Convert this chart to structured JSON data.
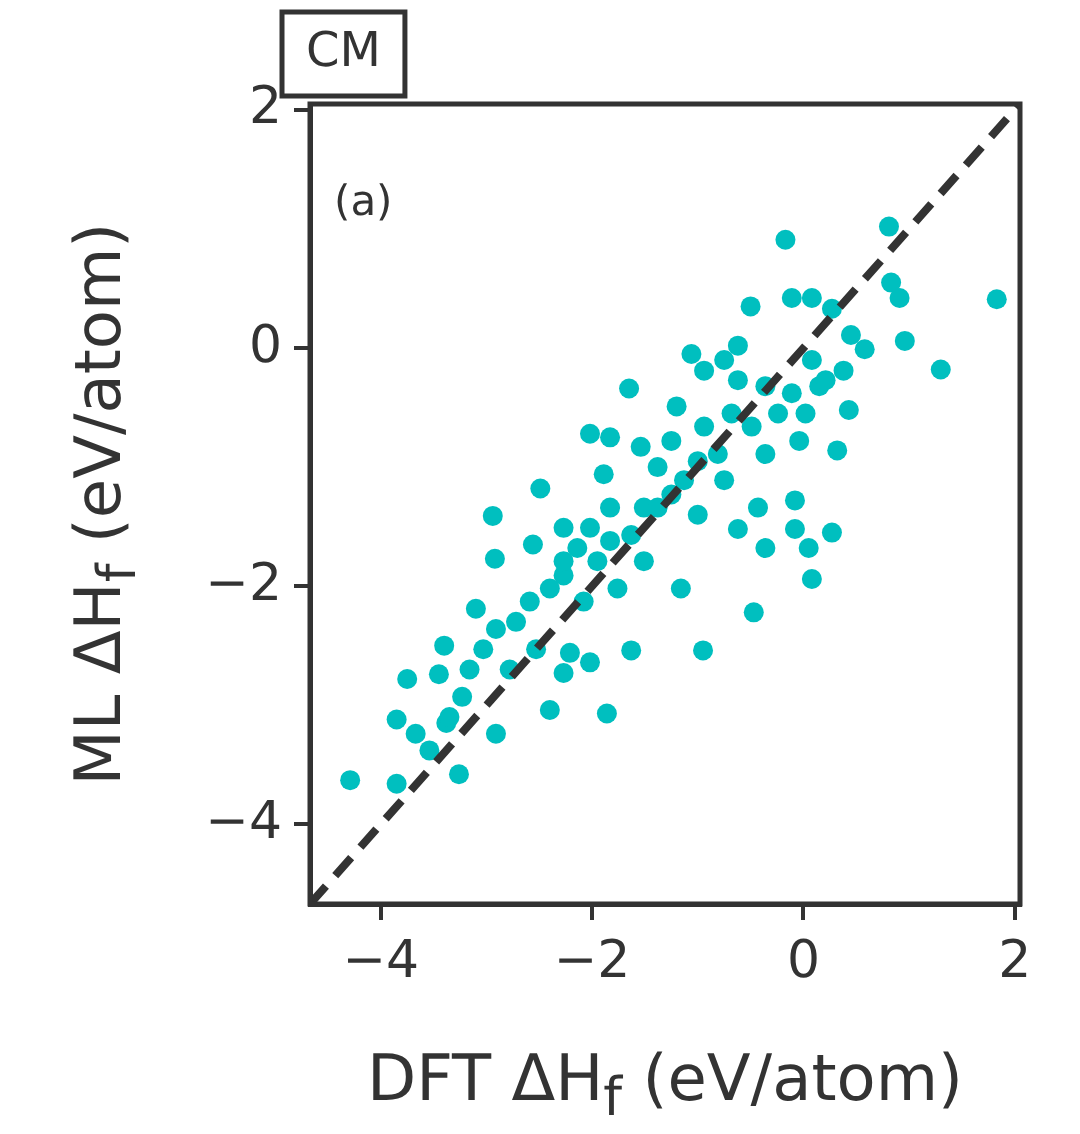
{
  "chart_data": {
    "type": "scatter",
    "xlabel": "DFT ΔH$_{f}$ (eV/atom)",
    "ylabel": "ML ΔH$_{f}$ (eV/atom)",
    "annotations": [
      "CM",
      "(a)"
    ],
    "xlim": [
      -4.67,
      2.05
    ],
    "ylim": [
      -4.67,
      2.05
    ],
    "xticks": [
      {
        "value": -4,
        "label": "−4"
      },
      {
        "value": -2,
        "label": "−2"
      },
      {
        "value": 0,
        "label": "0"
      },
      {
        "value": 2,
        "label": "2"
      }
    ],
    "yticks": [
      {
        "value": -4,
        "label": "−4"
      },
      {
        "value": -2,
        "label": "−2"
      },
      {
        "value": 0,
        "label": "0"
      },
      {
        "value": 2,
        "label": "2"
      }
    ],
    "grid": false,
    "legend": false,
    "marker": "circle",
    "series": [
      {
        "type": "scatter",
        "color": "#00bfbf",
        "x": [
          -4.29,
          -3.85,
          -3.85,
          -3.75,
          -3.45,
          -3.26,
          -3.67,
          -3.38,
          -3.4,
          -3.1,
          -2.94,
          -2.92,
          -2.91,
          -2.4,
          -1.86,
          -2.49,
          -2.56,
          -2.27,
          -2.02,
          -1.83,
          -1.89,
          -1.65,
          -1.54,
          -1.2,
          -1.06,
          -0.94,
          -0.75,
          -0.62,
          -0.5,
          -0.17,
          -0.11,
          0.08,
          0.27,
          0.45,
          0.58,
          0.81,
          0.83,
          0.91,
          0.96,
          1.3,
          1.83,
          0.38,
          0.43,
          0.32,
          0.27,
          -0.08,
          -0.08,
          0.05,
          0.08,
          -0.36,
          -0.47,
          -0.95,
          -1.16,
          -1.63,
          -2.02,
          -2.21,
          -2.27,
          -0.62,
          -0.43,
          -0.24,
          -0.36,
          -0.11,
          -0.49,
          -0.68,
          -0.81,
          -1.0,
          -1.13,
          -1.25,
          -1.38,
          -1.51,
          -1.63,
          -1.83,
          -2.02,
          -2.14,
          -1.95,
          -2.27,
          -2.4,
          -2.59,
          -2.72,
          -2.91,
          -3.03,
          -3.16,
          -3.23,
          -3.35,
          -3.54,
          -2.78,
          -2.53,
          -2.08,
          -1.76,
          -1.51,
          -1.0,
          -0.75,
          -0.36,
          -0.04,
          0.02,
          0.15,
          0.08,
          0.21,
          -0.62,
          -0.94,
          -1.25,
          -1.38,
          -1.83,
          -2.27
        ],
        "values": [
          -3.63,
          -3.66,
          -3.12,
          -2.78,
          -2.74,
          -3.58,
          -3.24,
          -3.15,
          -2.5,
          -2.19,
          -1.41,
          -1.77,
          -3.24,
          -3.04,
          -3.07,
          -1.18,
          -1.65,
          -1.51,
          -0.72,
          -0.75,
          -1.06,
          -0.34,
          -0.83,
          -0.49,
          -0.05,
          -0.19,
          -0.1,
          0.02,
          0.35,
          0.91,
          0.42,
          0.42,
          0.33,
          0.11,
          -0.01,
          1.02,
          0.55,
          0.42,
          0.06,
          -0.18,
          0.41,
          -0.19,
          -0.52,
          -0.86,
          -1.55,
          -1.28,
          -1.52,
          -1.68,
          -1.94,
          -1.68,
          -2.22,
          -2.54,
          -2.02,
          -2.54,
          -2.64,
          -2.56,
          -2.73,
          -1.52,
          -1.34,
          -0.55,
          -0.32,
          -0.38,
          -0.66,
          -0.55,
          -0.89,
          -0.95,
          -1.11,
          -1.23,
          -1.0,
          -1.34,
          -1.57,
          -1.62,
          -1.51,
          -1.68,
          -1.79,
          -1.91,
          -2.02,
          -2.13,
          -2.3,
          -2.36,
          -2.53,
          -2.7,
          -2.93,
          -3.1,
          -3.38,
          -2.7,
          -2.53,
          -2.13,
          -2.02,
          -1.79,
          -1.4,
          -1.11,
          -0.89,
          -0.78,
          -0.55,
          -0.32,
          -0.1,
          -0.27,
          -0.27,
          -0.66,
          -0.78,
          -1.34,
          -1.34,
          -1.79
        ]
      },
      {
        "type": "line",
        "color": "#333333",
        "line_style": "dashed",
        "marker": "none",
        "x": [
          -4.67,
          2.05
        ],
        "values": [
          -4.67,
          2.05
        ]
      }
    ]
  }
}
